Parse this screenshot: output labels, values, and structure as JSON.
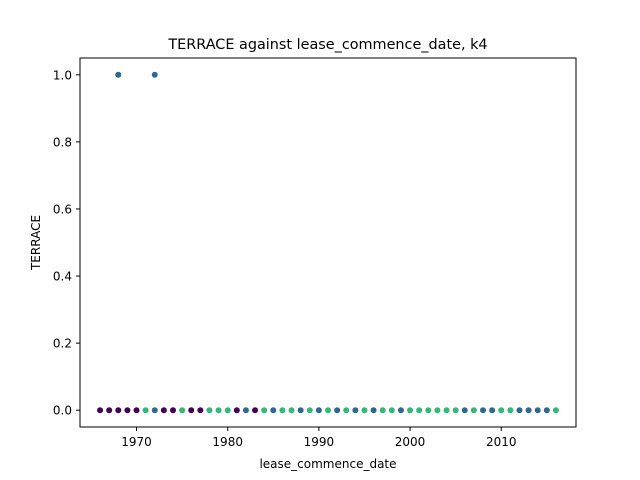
{
  "chart_data": {
    "type": "scatter",
    "title": "TERRACE against lease_commence_date, k4",
    "xlabel": "lease_commence_date",
    "ylabel": "TERRACE",
    "xlim": [
      1963.8,
      2018.2
    ],
    "ylim": [
      -0.05,
      1.05
    ],
    "xticks": [
      1970,
      1980,
      1990,
      2000,
      2010
    ],
    "yticks": [
      0.0,
      0.2,
      0.4,
      0.6,
      0.8,
      1.0
    ],
    "xtick_labels": [
      "1970",
      "1980",
      "1990",
      "2000",
      "2010"
    ],
    "ytick_labels": [
      "0.0",
      "0.2",
      "0.4",
      "0.6",
      "0.8",
      "1.0"
    ],
    "grid": false,
    "legend": "none",
    "colormap": "viridis",
    "cluster_colors": [
      "#440154",
      "#31688e",
      "#35b779"
    ],
    "points": [
      {
        "x": 1966,
        "y": 0,
        "c": 0
      },
      {
        "x": 1967,
        "y": 0,
        "c": 0
      },
      {
        "x": 1968,
        "y": 0,
        "c": 0
      },
      {
        "x": 1969,
        "y": 0,
        "c": 0
      },
      {
        "x": 1970,
        "y": 0,
        "c": 0
      },
      {
        "x": 1971,
        "y": 0,
        "c": 2
      },
      {
        "x": 1972,
        "y": 0,
        "c": 1
      },
      {
        "x": 1973,
        "y": 0,
        "c": 0
      },
      {
        "x": 1974,
        "y": 0,
        "c": 0
      },
      {
        "x": 1975,
        "y": 0,
        "c": 2
      },
      {
        "x": 1976,
        "y": 0,
        "c": 0
      },
      {
        "x": 1977,
        "y": 0,
        "c": 0
      },
      {
        "x": 1978,
        "y": 0,
        "c": 2
      },
      {
        "x": 1979,
        "y": 0,
        "c": 2
      },
      {
        "x": 1980,
        "y": 0,
        "c": 2
      },
      {
        "x": 1981,
        "y": 0,
        "c": 0
      },
      {
        "x": 1982,
        "y": 0,
        "c": 1
      },
      {
        "x": 1983,
        "y": 0,
        "c": 0
      },
      {
        "x": 1984,
        "y": 0,
        "c": 2
      },
      {
        "x": 1985,
        "y": 0,
        "c": 1
      },
      {
        "x": 1986,
        "y": 0,
        "c": 2
      },
      {
        "x": 1987,
        "y": 0,
        "c": 2
      },
      {
        "x": 1988,
        "y": 0,
        "c": 1
      },
      {
        "x": 1989,
        "y": 0,
        "c": 2
      },
      {
        "x": 1990,
        "y": 0,
        "c": 1
      },
      {
        "x": 1991,
        "y": 0,
        "c": 2
      },
      {
        "x": 1992,
        "y": 0,
        "c": 1
      },
      {
        "x": 1993,
        "y": 0,
        "c": 2
      },
      {
        "x": 1994,
        "y": 0,
        "c": 1
      },
      {
        "x": 1995,
        "y": 0,
        "c": 2
      },
      {
        "x": 1996,
        "y": 0,
        "c": 1
      },
      {
        "x": 1997,
        "y": 0,
        "c": 2
      },
      {
        "x": 1998,
        "y": 0,
        "c": 2
      },
      {
        "x": 1999,
        "y": 0,
        "c": 1
      },
      {
        "x": 2000,
        "y": 0,
        "c": 2
      },
      {
        "x": 2001,
        "y": 0,
        "c": 2
      },
      {
        "x": 2002,
        "y": 0,
        "c": 2
      },
      {
        "x": 2003,
        "y": 0,
        "c": 2
      },
      {
        "x": 2004,
        "y": 0,
        "c": 2
      },
      {
        "x": 2005,
        "y": 0,
        "c": 2
      },
      {
        "x": 2006,
        "y": 0,
        "c": 1
      },
      {
        "x": 2007,
        "y": 0,
        "c": 2
      },
      {
        "x": 2008,
        "y": 0,
        "c": 1
      },
      {
        "x": 2009,
        "y": 0,
        "c": 1
      },
      {
        "x": 2010,
        "y": 0,
        "c": 2
      },
      {
        "x": 2011,
        "y": 0,
        "c": 2
      },
      {
        "x": 2012,
        "y": 0,
        "c": 1
      },
      {
        "x": 2013,
        "y": 0,
        "c": 1
      },
      {
        "x": 2014,
        "y": 0,
        "c": 1
      },
      {
        "x": 2015,
        "y": 0,
        "c": 1
      },
      {
        "x": 2016,
        "y": 0,
        "c": 2
      },
      {
        "x": 1968,
        "y": 1,
        "c": 1
      },
      {
        "x": 1972,
        "y": 1,
        "c": 1
      }
    ]
  }
}
